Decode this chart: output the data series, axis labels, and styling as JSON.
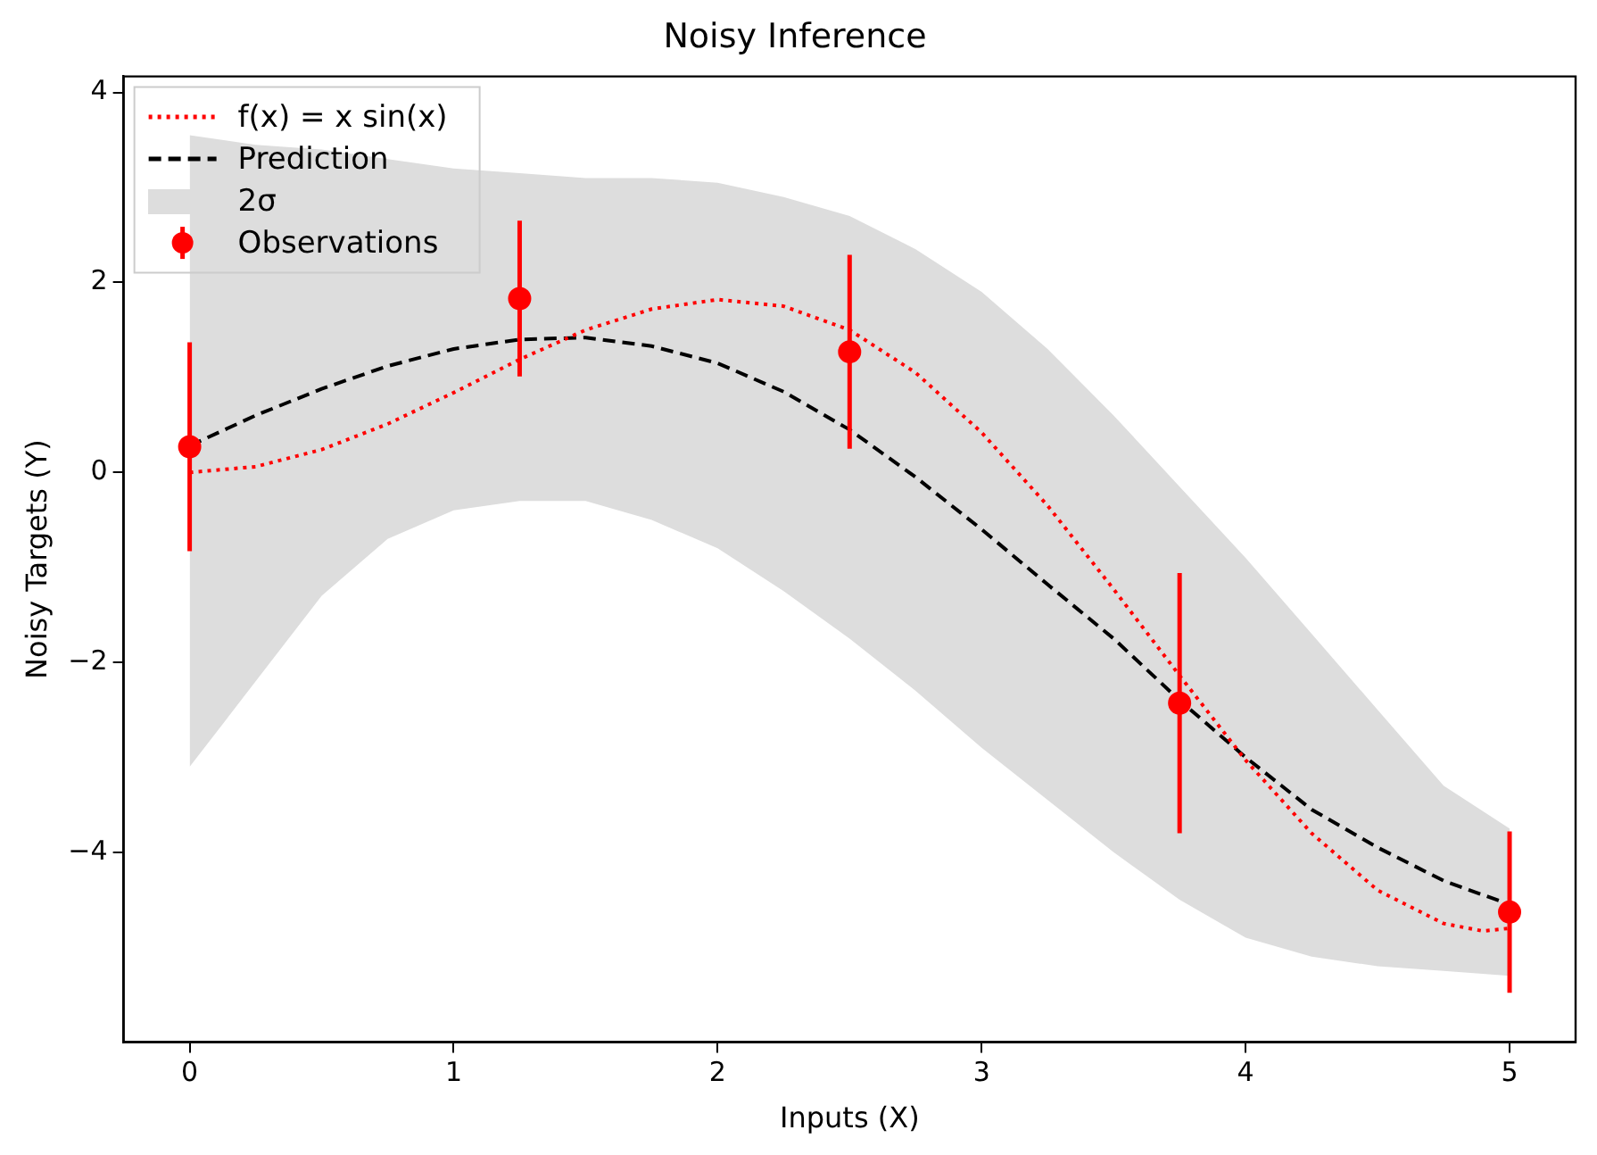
{
  "chart_data": {
    "type": "line",
    "title": "Noisy Inference",
    "xlabel": "Inputs (X)",
    "ylabel": "Noisy Targets (Y)",
    "xlim": [
      -0.25,
      5.25
    ],
    "xticks": [
      0,
      1,
      2,
      3,
      4,
      5
    ],
    "ylim": [
      -6,
      4.17
    ],
    "yticks": [
      {
        "value": -4,
        "label": "−4"
      },
      {
        "value": -2,
        "label": "−2"
      },
      0,
      2,
      4
    ],
    "grid": false,
    "legend": "top left",
    "annotations": [
      "2σ"
    ],
    "series": [
      {
        "name": "f(x) = x sin(x)",
        "color": "#ff0000",
        "line_style": "dotted",
        "marker": "none",
        "x": [
          0,
          0.25,
          0.5,
          0.75,
          1,
          1.25,
          1.5,
          1.75,
          2,
          2.25,
          2.5,
          2.75,
          3,
          3.25,
          3.5,
          3.75,
          4,
          4.25,
          4.5,
          4.75,
          4.9,
          5
        ],
        "values": [
          0,
          0.06,
          0.24,
          0.51,
          0.84,
          1.19,
          1.5,
          1.72,
          1.82,
          1.75,
          1.5,
          1.05,
          0.42,
          -0.35,
          -1.23,
          -2.14,
          -3.03,
          -3.8,
          -4.4,
          -4.75,
          -4.83,
          -4.8
        ]
      },
      {
        "name": "Prediction",
        "color": "#000000",
        "line_style": "dashed",
        "marker": "none",
        "x": [
          0,
          0.25,
          0.5,
          0.75,
          1,
          1.25,
          1.5,
          1.75,
          2,
          2.25,
          2.5,
          2.75,
          3,
          3.25,
          3.5,
          3.75,
          4,
          4.25,
          4.5,
          4.75,
          5
        ],
        "values": [
          0.28,
          0.6,
          0.88,
          1.12,
          1.3,
          1.4,
          1.42,
          1.33,
          1.15,
          0.85,
          0.45,
          -0.05,
          -0.6,
          -1.18,
          -1.75,
          -2.4,
          -3.0,
          -3.55,
          -3.95,
          -4.3,
          -4.55
        ],
        "lower": [
          -3.1,
          -2.2,
          -1.3,
          -0.7,
          -0.4,
          -0.3,
          -0.3,
          -0.5,
          -0.8,
          -1.25,
          -1.75,
          -2.3,
          -2.9,
          -3.45,
          -4.0,
          -4.5,
          -4.9,
          -5.1,
          -5.2,
          -5.25,
          -5.3
        ],
        "upper": [
          3.55,
          3.45,
          3.4,
          3.3,
          3.2,
          3.15,
          3.1,
          3.1,
          3.05,
          2.9,
          2.7,
          2.35,
          1.9,
          1.3,
          0.6,
          -0.15,
          -0.9,
          -1.7,
          -2.5,
          -3.3,
          -3.75
        ]
      },
      {
        "name": "Observations",
        "type": "scatter",
        "color": "#ff0000",
        "marker": "circle",
        "x": [
          0,
          1.25,
          2.5,
          3.75,
          5
        ],
        "values": [
          0.27,
          1.83,
          1.27,
          -2.43,
          -4.63
        ],
        "errors": [
          1.1,
          0.82,
          1.02,
          1.37,
          0.85
        ]
      }
    ]
  }
}
